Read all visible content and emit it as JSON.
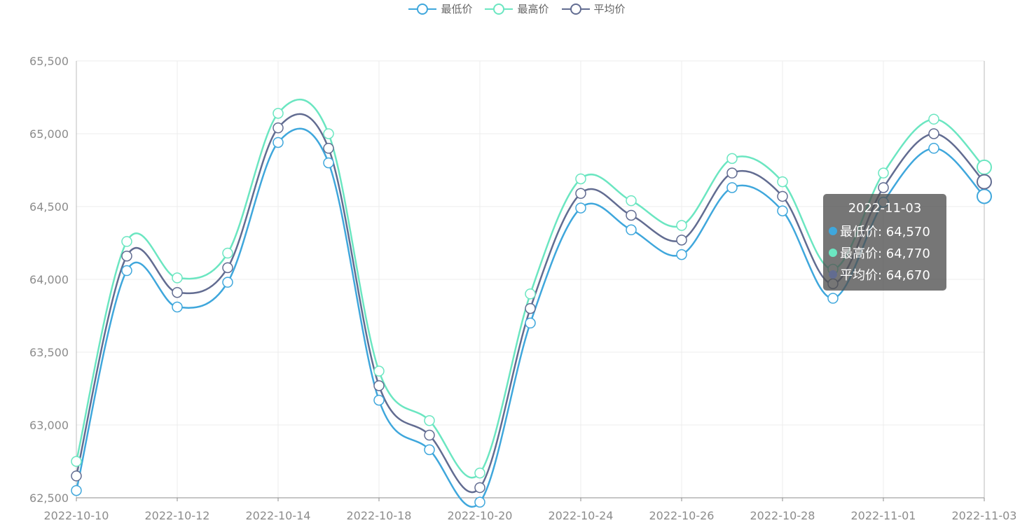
{
  "legend": [
    {
      "name": "最低价",
      "color": "#3fa7dc"
    },
    {
      "name": "最高价",
      "color": "#6be6c1"
    },
    {
      "name": "平均价",
      "color": "#626c91"
    }
  ],
  "tooltip": {
    "title": "2022-11-03",
    "rows": [
      {
        "label": "最低价: 64,570",
        "color": "#3fa7dc"
      },
      {
        "label": "最高价: 64,770",
        "color": "#6be6c1"
      },
      {
        "label": "平均价: 64,670",
        "color": "#626c91"
      }
    ]
  },
  "chart_data": {
    "type": "line",
    "x_tick_labels": [
      "2022-10-10",
      "2022-10-12",
      "2022-10-14",
      "2022-10-18",
      "2022-10-20",
      "2022-10-24",
      "2022-10-26",
      "2022-10-28",
      "2022-11-01",
      "2022-11-03"
    ],
    "ylim": [
      62500,
      65500
    ],
    "y_tick_labels": [
      "62,500",
      "63,000",
      "63,500",
      "64,000",
      "64,500",
      "65,000",
      "65,500"
    ],
    "grid": true,
    "legend_position": "top-center",
    "series": [
      {
        "name": "最低价",
        "color": "#3fa7dc",
        "values": [
          62550,
          64060,
          63810,
          63980,
          64940,
          64800,
          63170,
          62830,
          62470,
          63700,
          64490,
          64340,
          64170,
          64630,
          64470,
          63870,
          64530,
          64900,
          64570
        ]
      },
      {
        "name": "最高价",
        "color": "#6be6c1",
        "values": [
          62750,
          64260,
          64010,
          64180,
          65140,
          65000,
          63370,
          63030,
          62670,
          63900,
          64690,
          64540,
          64370,
          64830,
          64670,
          64070,
          64730,
          65100,
          64770
        ]
      },
      {
        "name": "平均价",
        "color": "#626c91",
        "values": [
          62650,
          64160,
          63910,
          64080,
          65040,
          64900,
          63270,
          62930,
          62570,
          63800,
          64590,
          64440,
          64270,
          64730,
          64570,
          63970,
          64630,
          65000,
          64670
        ]
      }
    ],
    "highlight_index": 18
  }
}
